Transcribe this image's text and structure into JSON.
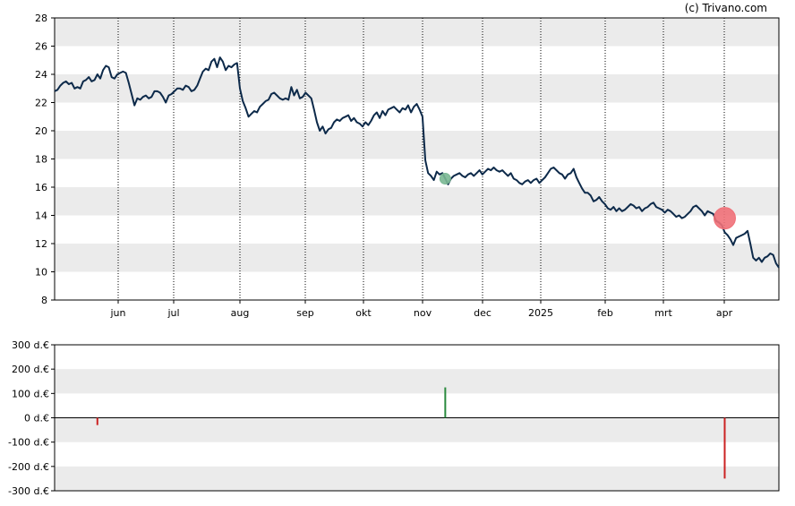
{
  "credit": "(c) Trivano.com",
  "chart_data": [
    {
      "type": "line",
      "title": "",
      "xlabel": "",
      "ylabel": "",
      "ylim": [
        8,
        28
      ],
      "yticks": [
        8,
        10,
        12,
        14,
        16,
        18,
        20,
        22,
        24,
        26,
        28
      ],
      "month_labels": [
        "jun",
        "jul",
        "aug",
        "sep",
        "okt",
        "nov",
        "dec",
        "2025",
        "feb",
        "mrt",
        "apr"
      ],
      "band_fill": "#ebebeb",
      "line_color": "#0d2a4a",
      "grid": "vertical dotted at month starts",
      "series": [
        {
          "values": [
            22.8,
            22.9,
            23.2,
            23.4,
            23.5,
            23.3,
            23.4,
            23.0,
            23.1,
            23.0,
            23.5,
            23.6,
            23.8,
            23.5,
            23.6,
            24.0,
            23.7,
            24.3,
            24.6,
            24.5,
            23.8,
            23.7,
            24.0,
            24.1,
            24.2,
            24.1,
            23.4,
            22.6,
            21.8,
            22.3,
            22.2,
            22.4,
            22.5,
            22.3,
            22.4,
            22.8,
            22.8,
            22.7,
            22.4,
            22.0,
            22.5,
            22.6,
            22.8,
            23.0,
            23.0,
            22.9,
            23.2,
            23.1,
            22.8,
            22.9,
            23.2,
            23.7,
            24.2,
            24.4,
            24.3,
            24.9,
            25.1,
            24.5,
            25.2,
            24.9,
            24.3,
            24.6,
            24.5,
            24.7,
            24.8,
            23.0,
            22.1,
            21.6,
            21.0,
            21.2,
            21.4,
            21.3,
            21.7,
            21.9,
            22.1,
            22.2,
            22.6,
            22.7,
            22.5,
            22.3,
            22.2,
            22.3,
            22.2,
            23.1,
            22.5,
            22.9,
            22.3,
            22.4,
            22.7,
            22.5,
            22.3,
            21.5,
            20.6,
            20.0,
            20.3,
            19.8,
            20.1,
            20.2,
            20.6,
            20.8,
            20.7,
            20.9,
            21.0,
            21.1,
            20.7,
            20.9,
            20.6,
            20.5,
            20.3,
            20.6,
            20.4,
            20.7,
            21.1,
            21.3,
            20.9,
            21.4,
            21.1,
            21.5,
            21.6,
            21.7,
            21.5,
            21.3,
            21.6,
            21.5,
            21.8,
            21.3,
            21.7,
            21.9,
            21.5,
            21.0,
            17.9,
            17.0,
            16.8,
            16.5,
            17.1,
            16.9,
            17.0,
            16.6,
            16.2,
            16.6,
            16.8,
            16.9,
            17.0,
            16.8,
            16.7,
            16.9,
            17.0,
            16.8,
            17.0,
            17.2,
            16.9,
            17.1,
            17.3,
            17.2,
            17.4,
            17.2,
            17.1,
            17.2,
            17.0,
            16.8,
            17.0,
            16.6,
            16.5,
            16.3,
            16.2,
            16.4,
            16.5,
            16.3,
            16.5,
            16.6,
            16.3,
            16.5,
            16.7,
            17.0,
            17.3,
            17.4,
            17.2,
            17.0,
            16.9,
            16.6,
            16.9,
            17.0,
            17.3,
            16.7,
            16.3,
            15.9,
            15.6,
            15.6,
            15.4,
            15.0,
            15.1,
            15.3,
            15.0,
            14.8,
            14.5,
            14.4,
            14.6,
            14.3,
            14.5,
            14.3,
            14.4,
            14.6,
            14.8,
            14.7,
            14.5,
            14.6,
            14.3,
            14.5,
            14.6,
            14.8,
            14.9,
            14.6,
            14.5,
            14.4,
            14.2,
            14.4,
            14.3,
            14.1,
            13.9,
            14.0,
            13.8,
            13.9,
            14.1,
            14.3,
            14.6,
            14.7,
            14.5,
            14.3,
            14.0,
            14.3,
            14.2,
            14.1,
            13.6,
            13.5,
            13.3,
            12.8,
            12.6,
            12.3,
            11.9,
            12.4,
            12.5,
            12.6,
            12.7,
            12.9,
            12.0,
            11.0,
            10.8,
            11.0,
            10.7,
            11.0,
            11.1,
            11.3,
            11.2,
            10.6,
            10.3
          ]
        }
      ],
      "markers": [
        {
          "label": "buy",
          "index": 137,
          "value": 16.6,
          "color": "#7ab893",
          "size": "small"
        },
        {
          "label": "sell",
          "index": 235,
          "value": 13.8,
          "color": "#f07078",
          "size": "large"
        }
      ]
    },
    {
      "type": "bar",
      "title": "",
      "xlabel": "",
      "ylabel": "",
      "ylim": [
        -300,
        300
      ],
      "yticks": [
        -300,
        -200,
        -100,
        0,
        100,
        200,
        300
      ],
      "ytick_labels": [
        "-300 d.€",
        "-200 d.€",
        "-100 d.€",
        "0 d.€",
        "100 d.€",
        "200 d.€",
        "300 d.€"
      ],
      "band_fill": "#ebebeb",
      "series": [
        {
          "bars": [
            {
              "index": 15,
              "value": -30,
              "color": "#cc2222"
            },
            {
              "index": 137,
              "value": 125,
              "color": "#2a8a3e"
            },
            {
              "index": 235,
              "value": -250,
              "color": "#cc2222"
            }
          ]
        }
      ]
    }
  ]
}
